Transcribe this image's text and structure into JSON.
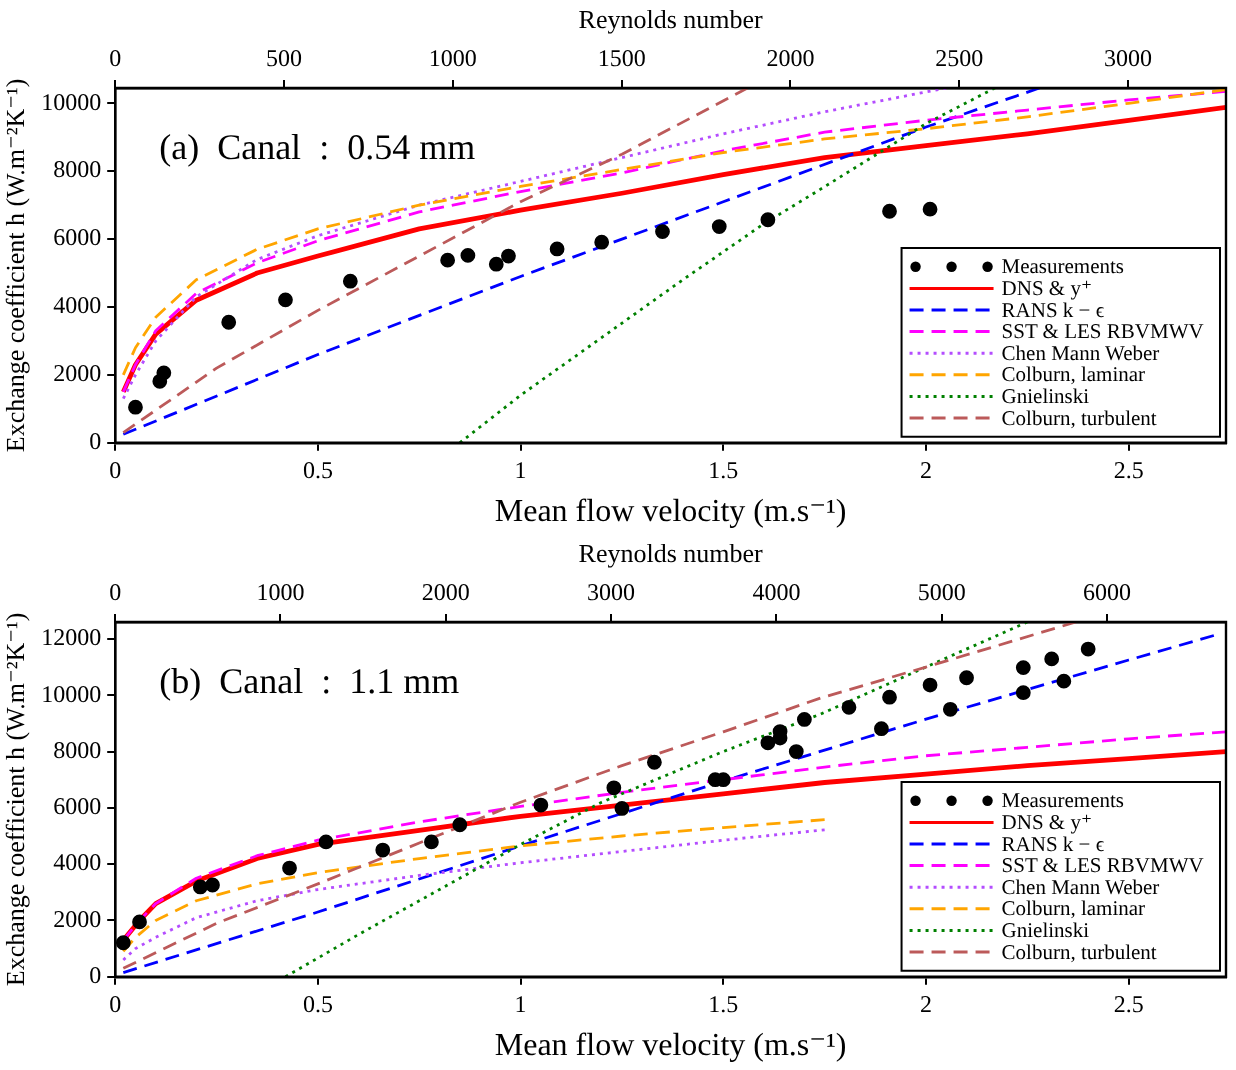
{
  "chart_data": [
    {
      "type": "line",
      "xlabel": "Mean flow velocity (m.s⁻¹)",
      "x2label": "Reynolds number",
      "ylabel": "Exchange coefficient h (W.m⁻²K⁻¹)",
      "xlim": [
        0,
        2.74
      ],
      "xticks": [
        0,
        0.5,
        1,
        1.5,
        2,
        2.5
      ],
      "x2lim": [
        0,
        3290
      ],
      "x2ticks": [
        0,
        500,
        1000,
        1500,
        2000,
        2500,
        3000
      ],
      "ylim": [
        0,
        10450
      ],
      "yticks": [
        0,
        2000,
        4000,
        6000,
        8000,
        10000
      ],
      "legend": "bottom right",
      "annotations": [
        "(a)  Canal  :  0.54 mm"
      ],
      "series": [
        {
          "name": "Measurements",
          "type": "scatter",
          "marker": "circle",
          "color": "#000000",
          "x": [
            0.05,
            0.11,
            0.12,
            0.28,
            0.42,
            0.58,
            0.82,
            0.87,
            0.94,
            0.97,
            1.09,
            1.2,
            1.35,
            1.49,
            1.61,
            1.91,
            2.01
          ],
          "values": [
            1050,
            1810,
            2060,
            3550,
            4210,
            4760,
            5380,
            5520,
            5260,
            5500,
            5710,
            5910,
            6220,
            6370,
            6570,
            6820,
            6880
          ]
        },
        {
          "name": "DNS & y⁺",
          "type": "line",
          "marker": "none",
          "line_style": "solid",
          "color": "#ff0000",
          "x": [
            0.02,
            0.05,
            0.1,
            0.2,
            0.35,
            0.5,
            0.75,
            1.0,
            1.25,
            1.5,
            1.75,
            2.0,
            2.25,
            2.5,
            2.74
          ],
          "values": [
            1500,
            2300,
            3200,
            4200,
            5000,
            5500,
            6300,
            6850,
            7350,
            7900,
            8400,
            8750,
            9100,
            9500,
            9880
          ]
        },
        {
          "name": "RANS k − ϵ",
          "type": "line",
          "marker": "none",
          "line_style": "dashed",
          "color": "#0000ff",
          "x": [
            0.02,
            0.5,
            1.0,
            1.5,
            2.0,
            2.28
          ],
          "values": [
            250,
            2600,
            4900,
            7100,
            9300,
            10450
          ]
        },
        {
          "name": "SST & LES RBVMWV",
          "type": "line",
          "marker": "none",
          "line_style": "dashed",
          "color": "#ff00ff",
          "x": [
            0.02,
            0.05,
            0.1,
            0.2,
            0.35,
            0.5,
            0.75,
            1.0,
            1.25,
            1.5,
            1.75,
            2.0,
            2.25,
            2.5,
            2.74
          ],
          "values": [
            1500,
            2300,
            3300,
            4400,
            5300,
            5950,
            6800,
            7400,
            7950,
            8600,
            9150,
            9500,
            9800,
            10100,
            10350
          ]
        },
        {
          "name": "Chen Mann Weber",
          "type": "line",
          "marker": "none",
          "line_style": "dotted",
          "color": "#b44dff",
          "x": [
            0.02,
            0.05,
            0.1,
            0.2,
            0.35,
            0.5,
            0.75,
            1.0,
            1.25,
            1.5,
            1.75,
            2.05
          ],
          "values": [
            1300,
            2000,
            3000,
            4300,
            5400,
            6100,
            7000,
            7700,
            8400,
            9100,
            9750,
            10450
          ]
        },
        {
          "name": "Colburn, laminar",
          "type": "line",
          "marker": "none",
          "line_style": "dashed",
          "color": "#ffa500",
          "x": [
            0.02,
            0.05,
            0.1,
            0.2,
            0.35,
            0.5,
            0.75,
            1.0,
            1.25,
            1.5,
            1.75,
            2.0,
            2.25,
            2.5,
            2.74
          ],
          "values": [
            2000,
            2800,
            3700,
            4800,
            5700,
            6300,
            7000,
            7550,
            8050,
            8550,
            8950,
            9250,
            9600,
            10000,
            10400
          ]
        },
        {
          "name": "Gnielinski",
          "type": "line",
          "marker": "none",
          "line_style": "dotted",
          "color": "#008000",
          "x": [
            0.85,
            1.0,
            1.2,
            1.4,
            1.6,
            1.74,
            2.0,
            2.17
          ],
          "values": [
            0,
            1400,
            3100,
            4800,
            6450,
            7470,
            9400,
            10450
          ]
        },
        {
          "name": "Colburn, turbulent",
          "type": "line",
          "marker": "none",
          "line_style": "dashed",
          "color": "#bc5a5a",
          "x": [
            0.02,
            0.25,
            0.5,
            0.75,
            1.0,
            1.25,
            1.56
          ],
          "values": [
            300,
            2200,
            3900,
            5500,
            7100,
            8500,
            10450
          ]
        }
      ]
    },
    {
      "type": "line",
      "xlabel": "Mean flow velocity (m.s⁻¹)",
      "x2label": "Reynolds number",
      "ylabel": "Exchange coefficient h (W.m⁻²K⁻¹)",
      "xlim": [
        0,
        2.74
      ],
      "xticks": [
        0,
        0.5,
        1,
        1.5,
        2,
        2.5
      ],
      "x2lim": [
        0,
        6720
      ],
      "x2ticks": [
        0,
        1000,
        2000,
        3000,
        4000,
        5000,
        6000
      ],
      "ylim": [
        0,
        12600
      ],
      "yticks": [
        0,
        2000,
        4000,
        6000,
        8000,
        10000,
        12000
      ],
      "legend": "bottom right",
      "annotations": [
        "(b)  Canal  :  1.1 mm"
      ],
      "series": [
        {
          "name": "Measurements",
          "type": "scatter",
          "marker": "circle",
          "color": "#000000",
          "x": [
            0.02,
            0.06,
            0.21,
            0.24,
            0.43,
            0.52,
            0.66,
            0.78,
            0.85,
            1.05,
            1.23,
            1.25,
            1.33,
            1.48,
            1.5,
            1.61,
            1.64,
            1.64,
            1.68,
            1.7,
            1.81,
            1.89,
            1.91,
            2.01,
            2.06,
            2.1,
            2.24,
            2.24,
            2.31,
            2.34,
            2.4
          ],
          "values": [
            1210,
            1950,
            3190,
            3260,
            3860,
            4790,
            4500,
            4790,
            5400,
            6100,
            6710,
            5980,
            7620,
            7000,
            7000,
            8310,
            8710,
            8480,
            8000,
            9140,
            9570,
            8810,
            9930,
            10360,
            9500,
            10620,
            10980,
            10090,
            11290,
            10500,
            11640
          ]
        },
        {
          "name": "DNS & y⁺",
          "type": "line",
          "marker": "none",
          "line_style": "solid",
          "color": "#ff0000",
          "x": [
            0.02,
            0.06,
            0.1,
            0.2,
            0.35,
            0.5,
            0.75,
            1.0,
            1.25,
            1.5,
            1.75,
            2.0,
            2.25,
            2.5,
            2.74
          ],
          "values": [
            1300,
            2000,
            2600,
            3400,
            4200,
            4700,
            5200,
            5700,
            6100,
            6500,
            6900,
            7200,
            7500,
            7750,
            8000
          ]
        },
        {
          "name": "RANS k − ϵ",
          "type": "line",
          "marker": "none",
          "line_style": "dashed",
          "color": "#0000ff",
          "x": [
            0.02,
            0.5,
            1.0,
            1.5,
            2.0,
            2.5,
            2.71
          ],
          "values": [
            150,
            2300,
            4650,
            6950,
            9150,
            11250,
            12120
          ]
        },
        {
          "name": "SST & LES RBVMWV",
          "type": "line",
          "marker": "none",
          "line_style": "dashed",
          "color": "#ff00ff",
          "x": [
            0.02,
            0.06,
            0.1,
            0.2,
            0.35,
            0.5,
            0.75,
            1.0,
            1.25,
            1.5,
            1.75,
            2.0,
            2.25,
            2.5,
            2.74
          ],
          "values": [
            1300,
            2000,
            2600,
            3500,
            4300,
            4850,
            5500,
            6050,
            6550,
            7000,
            7450,
            7850,
            8150,
            8450,
            8700
          ]
        },
        {
          "name": "Chen Mann Weber",
          "type": "line",
          "marker": "none",
          "line_style": "dotted",
          "color": "#b44dff",
          "x": [
            0.02,
            0.05,
            0.1,
            0.2,
            0.35,
            0.5,
            0.75,
            1.0,
            1.25,
            1.5,
            1.75
          ],
          "values": [
            600,
            1000,
            1400,
            2100,
            2700,
            3100,
            3600,
            4050,
            4450,
            4850,
            5220
          ]
        },
        {
          "name": "Colburn, laminar",
          "type": "line",
          "marker": "none",
          "line_style": "dashed",
          "color": "#ffa500",
          "x": [
            0.02,
            0.05,
            0.1,
            0.2,
            0.35,
            0.5,
            0.75,
            1.0,
            1.25,
            1.5,
            1.75
          ],
          "values": [
            900,
            1400,
            2000,
            2700,
            3300,
            3700,
            4200,
            4650,
            5000,
            5300,
            5580
          ]
        },
        {
          "name": "Gnielinski",
          "type": "line",
          "marker": "none",
          "line_style": "dotted",
          "color": "#008000",
          "x": [
            0.42,
            0.6,
            0.8,
            1.0,
            1.2,
            1.5,
            1.74,
            2.0,
            2.25
          ],
          "values": [
            0,
            1500,
            3100,
            4700,
            6200,
            8000,
            9330,
            11000,
            12600
          ]
        },
        {
          "name": "Colburn, turbulent",
          "type": "line",
          "marker": "none",
          "line_style": "dashed",
          "color": "#bc5a5a",
          "x": [
            0.02,
            0.25,
            0.5,
            0.75,
            1.0,
            1.25,
            1.5,
            1.74,
            2.0,
            2.37
          ],
          "values": [
            300,
            1900,
            3300,
            4750,
            6200,
            7500,
            8700,
            9900,
            11000,
            12600
          ]
        }
      ]
    }
  ]
}
